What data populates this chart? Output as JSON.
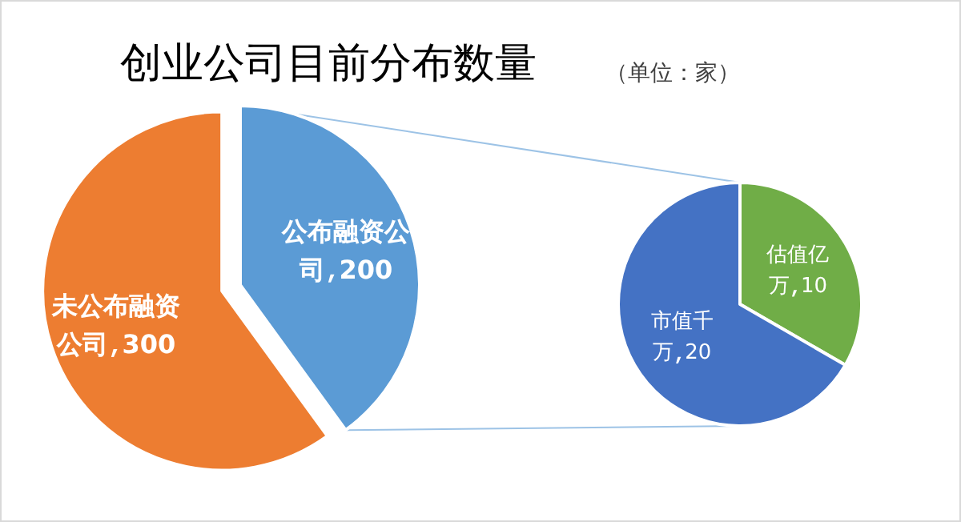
{
  "chart_data": [
    {
      "type": "pie",
      "title": "创业公司目前分布数量",
      "subtitle": "（单位：家）",
      "categories": [
        "公布融资公司",
        "未公布融资公司"
      ],
      "values": [
        200,
        300
      ],
      "colors": [
        "#5b9bd5",
        "#ed7d31"
      ],
      "data_labels": true
    },
    {
      "type": "pie",
      "categories": [
        "估值亿万",
        "市值千万"
      ],
      "values": [
        10,
        20
      ],
      "colors": [
        "#70ad47",
        "#4472c4"
      ],
      "data_labels": true
    }
  ]
}
